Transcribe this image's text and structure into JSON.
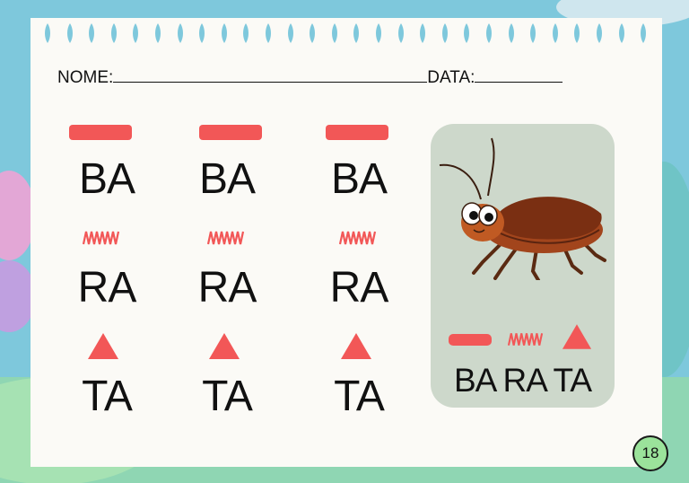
{
  "worksheet": {
    "name_label": "NOME:",
    "date_label": "DATA:",
    "columns": [
      {
        "syllables": [
          "BA",
          "RA",
          "TA"
        ]
      },
      {
        "syllables": [
          "BA",
          "RA",
          "TA"
        ]
      },
      {
        "syllables": [
          "BA",
          "RA",
          "TA"
        ]
      }
    ],
    "symbols": [
      "bar-symbol",
      "zigzag-symbol",
      "triangle-symbol"
    ]
  },
  "card": {
    "image": "cockroach-illustration",
    "word": "BA RA TA"
  },
  "page_number": "18",
  "colors": {
    "accent": "#f25757",
    "card": "#cdd8cb",
    "badge": "#9be39b",
    "frame": "#7fc9dc"
  }
}
